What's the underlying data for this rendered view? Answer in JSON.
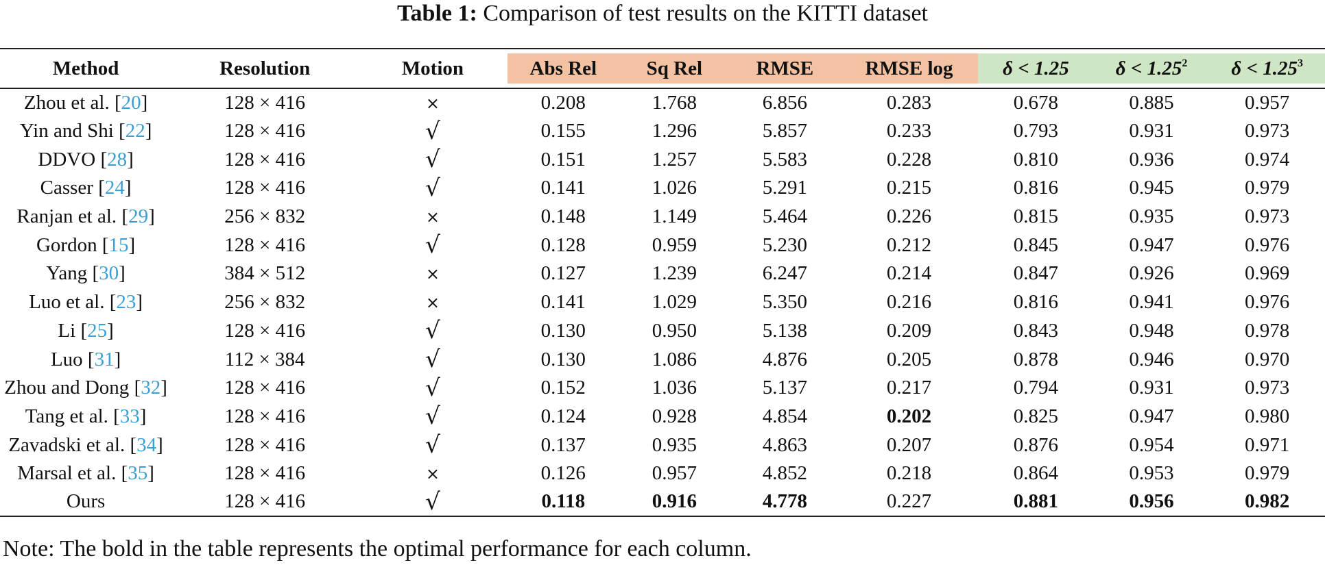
{
  "caption": {
    "label": "Table 1:",
    "text": "Comparison of test results on the KITTI dataset"
  },
  "headers": {
    "method": "Method",
    "resolution": "Resolution",
    "motion": "Motion",
    "abs_rel": "Abs Rel",
    "sq_rel": "Sq Rel",
    "rmse": "RMSE",
    "rmse_log": "RMSE log",
    "delta1": "δ < 1.25",
    "delta2_base": "δ < 1.25",
    "delta2_sup": "2",
    "delta3_base": "δ < 1.25",
    "delta3_sup": "3"
  },
  "header_colors": {
    "error_metrics": "#f2c2a2",
    "accuracy_metrics": "#cfe6c5",
    "reference_link": "#3a9fd2"
  },
  "motion_symbols": {
    "yes": "√",
    "no": "×"
  },
  "rows": [
    {
      "method": "Zhou et al. ",
      "ref": "20",
      "res": "128 × 416",
      "motion": "×",
      "abs_rel": "0.208",
      "sq_rel": "1.768",
      "rmse": "6.856",
      "rmse_log": "0.283",
      "d1": "0.678",
      "d2": "0.885",
      "d3": "0.957"
    },
    {
      "method": "Yin and Shi ",
      "ref": "22",
      "res": "128 × 416",
      "motion": "√",
      "abs_rel": "0.155",
      "sq_rel": "1.296",
      "rmse": "5.857",
      "rmse_log": "0.233",
      "d1": "0.793",
      "d2": "0.931",
      "d3": "0.973"
    },
    {
      "method": "DDVO ",
      "ref": "28",
      "res": "128 × 416",
      "motion": "√",
      "abs_rel": "0.151",
      "sq_rel": "1.257",
      "rmse": "5.583",
      "rmse_log": "0.228",
      "d1": "0.810",
      "d2": "0.936",
      "d3": "0.974"
    },
    {
      "method": "Casser ",
      "ref": "24",
      "res": "128 × 416",
      "motion": "√",
      "abs_rel": "0.141",
      "sq_rel": "1.026",
      "rmse": "5.291",
      "rmse_log": "0.215",
      "d1": "0.816",
      "d2": "0.945",
      "d3": "0.979"
    },
    {
      "method": "Ranjan et al. ",
      "ref": "29",
      "res": "256 × 832",
      "motion": "×",
      "abs_rel": "0.148",
      "sq_rel": "1.149",
      "rmse": "5.464",
      "rmse_log": "0.226",
      "d1": "0.815",
      "d2": "0.935",
      "d3": "0.973"
    },
    {
      "method": "Gordon ",
      "ref": "15",
      "res": "128 × 416",
      "motion": "√",
      "abs_rel": "0.128",
      "sq_rel": "0.959",
      "rmse": "5.230",
      "rmse_log": "0.212",
      "d1": "0.845",
      "d2": "0.947",
      "d3": "0.976"
    },
    {
      "method": "Yang ",
      "ref": "30",
      "res": "384 × 512",
      "motion": "×",
      "abs_rel": "0.127",
      "sq_rel": "1.239",
      "rmse": "6.247",
      "rmse_log": "0.214",
      "d1": "0.847",
      "d2": "0.926",
      "d3": "0.969"
    },
    {
      "method": "Luo et al. ",
      "ref": "23",
      "res": "256 × 832",
      "motion": "×",
      "abs_rel": "0.141",
      "sq_rel": "1.029",
      "rmse": "5.350",
      "rmse_log": "0.216",
      "d1": "0.816",
      "d2": "0.941",
      "d3": "0.976"
    },
    {
      "method": "Li ",
      "ref": "25",
      "res": "128 × 416",
      "motion": "√",
      "abs_rel": "0.130",
      "sq_rel": "0.950",
      "rmse": "5.138",
      "rmse_log": "0.209",
      "d1": "0.843",
      "d2": "0.948",
      "d3": "0.978"
    },
    {
      "method": "Luo ",
      "ref": "31",
      "res": "112 × 384",
      "motion": "√",
      "abs_rel": "0.130",
      "sq_rel": "1.086",
      "rmse": "4.876",
      "rmse_log": "0.205",
      "d1": "0.878",
      "d2": "0.946",
      "d3": "0.970"
    },
    {
      "method": "Zhou and Dong ",
      "ref": "32",
      "res": "128 × 416",
      "motion": "√",
      "abs_rel": "0.152",
      "sq_rel": "1.036",
      "rmse": "5.137",
      "rmse_log": "0.217",
      "d1": "0.794",
      "d2": "0.931",
      "d3": "0.973"
    },
    {
      "method": "Tang et al. ",
      "ref": "33",
      "res": "128 × 416",
      "motion": "√",
      "abs_rel": "0.124",
      "sq_rel": "0.928",
      "rmse": "4.854",
      "rmse_log": "0.202",
      "d1": "0.825",
      "d2": "0.947",
      "d3": "0.980",
      "bold": [
        "rmse_log"
      ]
    },
    {
      "method": "Zavadski et al. ",
      "ref": "34",
      "res": "128 × 416",
      "motion": "√",
      "abs_rel": "0.137",
      "sq_rel": "0.935",
      "rmse": "4.863",
      "rmse_log": "0.207",
      "d1": "0.876",
      "d2": "0.954",
      "d3": "0.971"
    },
    {
      "method": "Marsal et al. ",
      "ref": "35",
      "res": "128 × 416",
      "motion": "×",
      "abs_rel": "0.126",
      "sq_rel": "0.957",
      "rmse": "4.852",
      "rmse_log": "0.218",
      "d1": "0.864",
      "d2": "0.953",
      "d3": "0.979"
    },
    {
      "method": "Ours",
      "ref": "",
      "res": "128 × 416",
      "motion": "√",
      "abs_rel": "0.118",
      "sq_rel": "0.916",
      "rmse": "4.778",
      "rmse_log": "0.227",
      "d1": "0.881",
      "d2": "0.956",
      "d3": "0.982",
      "bold": [
        "abs_rel",
        "sq_rel",
        "rmse",
        "d1",
        "d2",
        "d3"
      ]
    }
  ],
  "note": "Note: The bold in the table represents the optimal performance for each column."
}
